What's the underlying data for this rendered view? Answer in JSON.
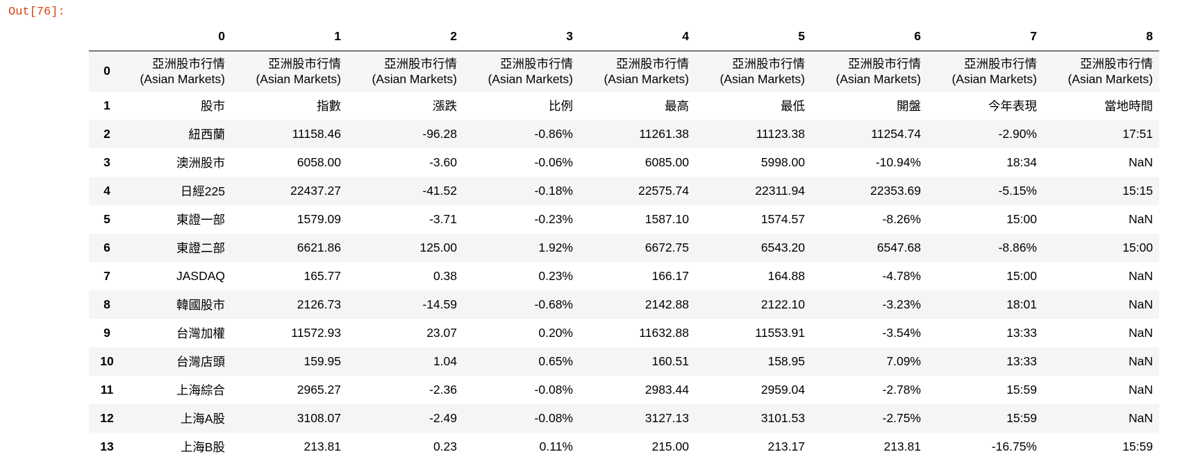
{
  "prompt": "Out[76]:",
  "columns": [
    "0",
    "1",
    "2",
    "3",
    "4",
    "5",
    "6",
    "7",
    "8"
  ],
  "rows": [
    {
      "index": "0",
      "cells": [
        [
          "亞洲股市行情",
          "(Asian Markets)"
        ],
        [
          "亞洲股市行情",
          "(Asian Markets)"
        ],
        [
          "亞洲股市行情",
          "(Asian Markets)"
        ],
        [
          "亞洲股市行情",
          "(Asian Markets)"
        ],
        [
          "亞洲股市行情",
          "(Asian Markets)"
        ],
        [
          "亞洲股市行情",
          "(Asian Markets)"
        ],
        [
          "亞洲股市行情",
          "(Asian Markets)"
        ],
        [
          "亞洲股市行情",
          "(Asian Markets)"
        ],
        [
          "亞洲股市行情",
          "(Asian Markets)"
        ]
      ]
    },
    {
      "index": "1",
      "cells": [
        "股市",
        "指數",
        "漲跌",
        "比例",
        "最高",
        "最低",
        "開盤",
        "今年表現",
        "當地時間"
      ]
    },
    {
      "index": "2",
      "cells": [
        "紐西蘭",
        "11158.46",
        "-96.28",
        "-0.86%",
        "11261.38",
        "11123.38",
        "11254.74",
        "-2.90%",
        "17:51"
      ]
    },
    {
      "index": "3",
      "cells": [
        "澳洲股市",
        "6058.00",
        "-3.60",
        "-0.06%",
        "6085.00",
        "5998.00",
        "-10.94%",
        "18:34",
        "NaN"
      ]
    },
    {
      "index": "4",
      "cells": [
        "日經225",
        "22437.27",
        "-41.52",
        "-0.18%",
        "22575.74",
        "22311.94",
        "22353.69",
        "-5.15%",
        "15:15"
      ]
    },
    {
      "index": "5",
      "cells": [
        "東證一部",
        "1579.09",
        "-3.71",
        "-0.23%",
        "1587.10",
        "1574.57",
        "-8.26%",
        "15:00",
        "NaN"
      ]
    },
    {
      "index": "6",
      "cells": [
        "東證二部",
        "6621.86",
        "125.00",
        "1.92%",
        "6672.75",
        "6543.20",
        "6547.68",
        "-8.86%",
        "15:00"
      ]
    },
    {
      "index": "7",
      "cells": [
        "JASDAQ",
        "165.77",
        "0.38",
        "0.23%",
        "166.17",
        "164.88",
        "-4.78%",
        "15:00",
        "NaN"
      ]
    },
    {
      "index": "8",
      "cells": [
        "韓國股市",
        "2126.73",
        "-14.59",
        "-0.68%",
        "2142.88",
        "2122.10",
        "-3.23%",
        "18:01",
        "NaN"
      ]
    },
    {
      "index": "9",
      "cells": [
        "台灣加權",
        "11572.93",
        "23.07",
        "0.20%",
        "11632.88",
        "11553.91",
        "-3.54%",
        "13:33",
        "NaN"
      ]
    },
    {
      "index": "10",
      "cells": [
        "台灣店頭",
        "159.95",
        "1.04",
        "0.65%",
        "160.51",
        "158.95",
        "7.09%",
        "13:33",
        "NaN"
      ]
    },
    {
      "index": "11",
      "cells": [
        "上海綜合",
        "2965.27",
        "-2.36",
        "-0.08%",
        "2983.44",
        "2959.04",
        "-2.78%",
        "15:59",
        "NaN"
      ]
    },
    {
      "index": "12",
      "cells": [
        "上海A股",
        "3108.07",
        "-2.49",
        "-0.08%",
        "3127.13",
        "3101.53",
        "-2.75%",
        "15:59",
        "NaN"
      ]
    },
    {
      "index": "13",
      "cells": [
        "上海B股",
        "213.81",
        "0.23",
        "0.11%",
        "215.00",
        "213.17",
        "213.81",
        "-16.75%",
        "15:59"
      ]
    }
  ]
}
